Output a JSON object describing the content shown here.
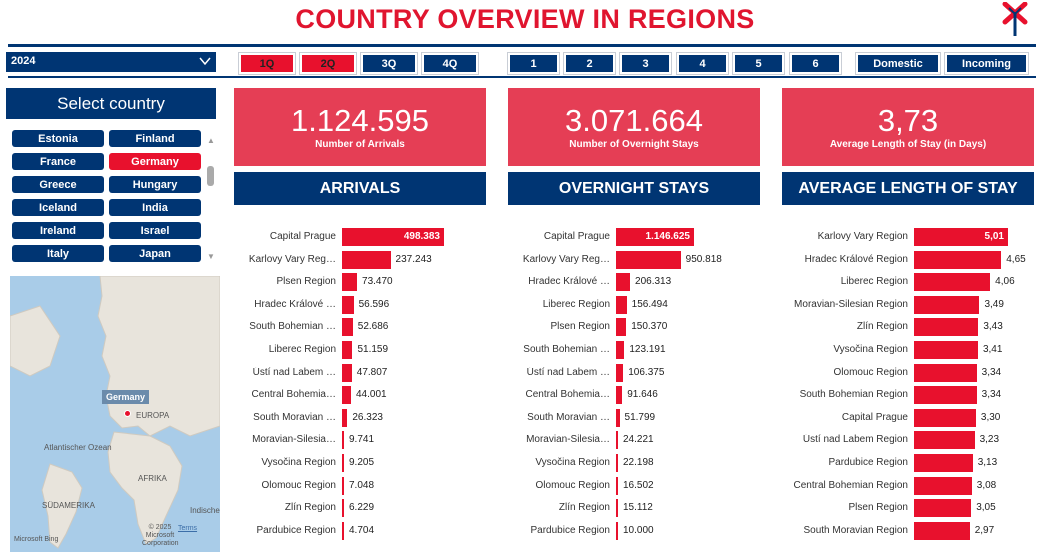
{
  "title": "COUNTRY OVERVIEW IN REGIONS",
  "colors": {
    "accent": "#e8112d",
    "navy": "#003573",
    "kpi": "#e53e55"
  },
  "year_select": {
    "value": "2024"
  },
  "quarters": [
    "1Q",
    "2Q",
    "3Q",
    "4Q"
  ],
  "quarters_selected": [
    "1Q",
    "2Q"
  ],
  "numbers": [
    "1",
    "2",
    "3",
    "4",
    "5",
    "6"
  ],
  "types": [
    "Domestic",
    "Incoming"
  ],
  "select_country": {
    "header": "Select country",
    "countries": [
      "Estonia",
      "Finland",
      "France",
      "Germany",
      "Greece",
      "Hungary",
      "Iceland",
      "India",
      "Ireland",
      "Israel",
      "Italy",
      "Japan"
    ],
    "selected": "Germany"
  },
  "map": {
    "tag": "Germany",
    "labels": [
      "EUROPA",
      "Atlantischer Ozean",
      "AFRIKA",
      "SÜDAMERIKA",
      "Indische",
      "© 2025 Microsoft Corporation",
      "Terms",
      "Microsoft Bing"
    ]
  },
  "kpis": [
    {
      "value": "1.124.595",
      "label": "Number of Arrivals"
    },
    {
      "value": "3.071.664",
      "label": "Number of Overnight Stays"
    },
    {
      "value": "3,73",
      "label": "Average Length of Stay (in Days)"
    }
  ],
  "sections": [
    "ARRIVALS",
    "OVERNIGHT STAYS",
    "AVERAGE LENGTH OF STAY"
  ],
  "chart_data": [
    {
      "type": "bar",
      "title": "ARRIVALS",
      "categories": [
        "Capital Prague",
        "Karlovy Vary Reg…",
        "Plsen Region",
        "Hradec Králové …",
        "South Bohemian …",
        "Liberec Region",
        "Ústí nad Labem …",
        "Central Bohemia…",
        "South Moravian …",
        "Moravian-Silesia…",
        "Vysočina Region",
        "Olomouc Region",
        "Zlín Region",
        "Pardubice Region"
      ],
      "values": [
        498383,
        237243,
        73470,
        56596,
        52686,
        51159,
        47807,
        44001,
        26323,
        9741,
        9205,
        7048,
        6229,
        4704
      ],
      "labels": [
        "498.383",
        "237.243",
        "73.470",
        "56.596",
        "52.686",
        "51.159",
        "47.807",
        "44.001",
        "26.323",
        "9.741",
        "9.205",
        "7.048",
        "6.229",
        "4.704"
      ]
    },
    {
      "type": "bar",
      "title": "OVERNIGHT STAYS",
      "categories": [
        "Capital Prague",
        "Karlovy Vary Reg…",
        "Hradec Králové …",
        "Liberec Region",
        "Plsen Region",
        "South Bohemian …",
        "Ústí nad Labem …",
        "Central Bohemia…",
        "South Moravian …",
        "Moravian-Silesia…",
        "Vysočina Region",
        "Olomouc Region",
        "Zlín Region",
        "Pardubice Region"
      ],
      "values": [
        1146625,
        950818,
        206313,
        156494,
        150370,
        123191,
        106375,
        91646,
        51799,
        24221,
        22198,
        16502,
        15112,
        10000
      ],
      "labels": [
        "1.146.625",
        "950.818",
        "206.313",
        "156.494",
        "150.370",
        "123.191",
        "106.375",
        "91.646",
        "51.799",
        "24.221",
        "22.198",
        "16.502",
        "15.112",
        "10.000"
      ]
    },
    {
      "type": "bar",
      "title": "AVERAGE LENGTH OF STAY",
      "categories": [
        "Karlovy Vary Region",
        "Hradec Králové Region",
        "Liberec Region",
        "Moravian-Silesian Region",
        "Zlín Region",
        "Vysočina Region",
        "Olomouc Region",
        "South Bohemian Region",
        "Capital Prague",
        "Ústí nad Labem Region",
        "Pardubice Region",
        "Central Bohemian Region",
        "Plsen Region",
        "South Moravian Region"
      ],
      "values": [
        5.01,
        4.65,
        4.06,
        3.49,
        3.43,
        3.41,
        3.34,
        3.34,
        3.3,
        3.23,
        3.13,
        3.08,
        3.05,
        2.97
      ],
      "labels": [
        "5,01",
        "4,65",
        "4,06",
        "3,49",
        "3,43",
        "3,41",
        "3,34",
        "3,34",
        "3,30",
        "3,23",
        "3,13",
        "3,08",
        "3,05",
        "2,97"
      ]
    }
  ]
}
